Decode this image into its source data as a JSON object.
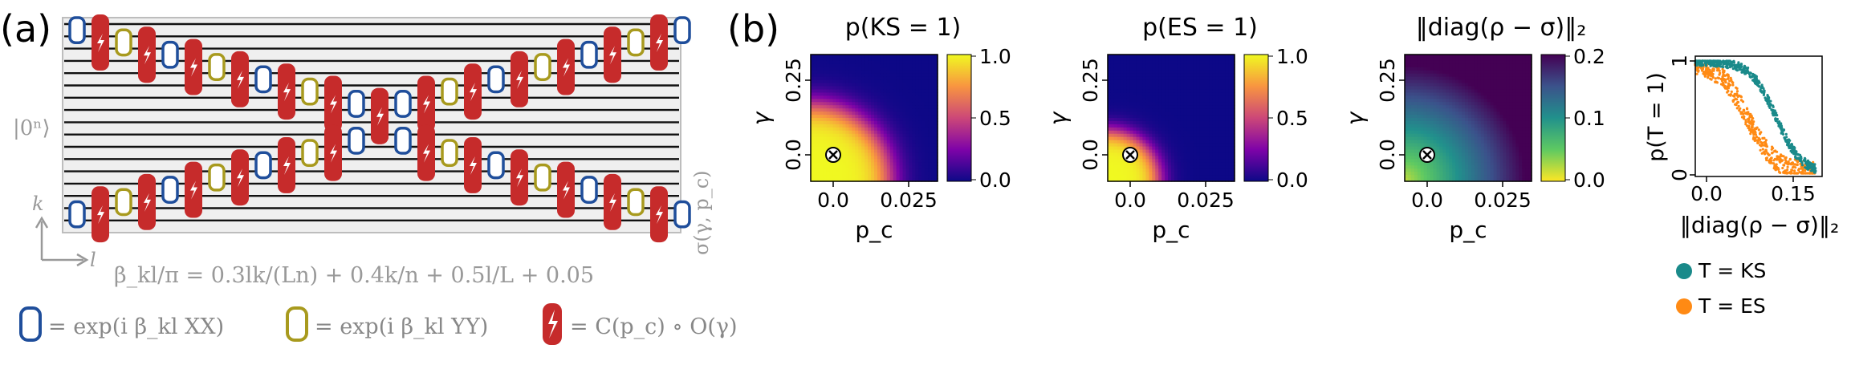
{
  "panel_a": {
    "label": "(a)",
    "input_state": "|0ⁿ⟩",
    "output_state": "σ(γ, p_c)",
    "axis_k": "k",
    "axis_l": "l",
    "beta_formula": "β_kl/π = 0.3lk/(Ln) + 0.4k/n + 0.5l/L + 0.05",
    "legend": {
      "xx": "= exp(i β_kl XX)",
      "yy": "= exp(i β_kl YY)",
      "noise": "= C(p_c) ∘ O(γ)"
    }
  },
  "panel_b": {
    "label": "(b)",
    "colors": {
      "teal": "#1a8a8a",
      "orange": "#ff8a14",
      "blue_gate": "#1f4e9b",
      "olive_gate": "#a89a1e",
      "red_gate": "#c62b2b"
    },
    "heatmaps": [
      {
        "title": "p(KS = 1)",
        "ylabel": "γ",
        "xlabel": "p_c",
        "xticks": [
          "0.0",
          "0.025"
        ],
        "yticks": [
          "0.0",
          "0.25"
        ],
        "colorbar_ticks": [
          "1.0",
          "0.5",
          "0.0"
        ],
        "colormap": "plasma"
      },
      {
        "title": "p(ES = 1)",
        "ylabel": "γ",
        "xlabel": "p_c",
        "xticks": [
          "0.0",
          "0.025"
        ],
        "yticks": [
          "0.0",
          "0.25"
        ],
        "colorbar_ticks": [
          "1.0",
          "0.5",
          "0.0"
        ],
        "colormap": "plasma"
      },
      {
        "title": "‖diag(ρ − σ)‖₂",
        "ylabel": "γ",
        "xlabel": "p_c",
        "xticks": [
          "0.0",
          "0.025"
        ],
        "yticks": [
          "0.0",
          "0.25"
        ],
        "colorbar_ticks": [
          "0.2",
          "0.1",
          "0.0"
        ],
        "colormap": "viridis_r"
      }
    ],
    "scatter": {
      "ylabel": "p(T = 1)",
      "xlabel": "‖diag(ρ − σ)‖₂",
      "xticks": [
        "0.0",
        "0.15"
      ],
      "yticks": [
        "1",
        "0"
      ],
      "legend": [
        "T = KS",
        "T = ES"
      ]
    }
  },
  "chart_data": [
    {
      "type": "heatmap",
      "title": "p(KS = 1)",
      "xlabel": "p_c",
      "ylabel": "γ",
      "xlim": [
        -0.006,
        0.035
      ],
      "ylim": [
        -0.08,
        0.36
      ],
      "colorbar_range": [
        0.0,
        1.0
      ],
      "colorbar_ticks": [
        0.0,
        0.5,
        1.0
      ],
      "marker": {
        "x": 0.0,
        "y": 0.0
      }
    },
    {
      "type": "heatmap",
      "title": "p(ES = 1)",
      "xlabel": "p_c",
      "ylabel": "γ",
      "xlim": [
        -0.006,
        0.035
      ],
      "ylim": [
        -0.08,
        0.36
      ],
      "colorbar_range": [
        0.0,
        1.0
      ],
      "colorbar_ticks": [
        0.0,
        0.5,
        1.0
      ],
      "marker": {
        "x": 0.0,
        "y": 0.0
      }
    },
    {
      "type": "heatmap",
      "title": "‖diag(ρ − σ)‖₂",
      "xlabel": "p_c",
      "ylabel": "γ",
      "xlim": [
        -0.006,
        0.035
      ],
      "ylim": [
        -0.08,
        0.36
      ],
      "colorbar_range": [
        0.0,
        0.2
      ],
      "colorbar_ticks": [
        0.0,
        0.1,
        0.2
      ],
      "marker": {
        "x": 0.0,
        "y": 0.0
      }
    },
    {
      "type": "scatter",
      "xlabel": "‖diag(ρ − σ)‖₂",
      "ylabel": "p(T = 1)",
      "xlim": [
        -0.02,
        0.2
      ],
      "ylim": [
        0,
        1
      ],
      "series": [
        {
          "name": "T = KS",
          "color": "#1a8a8a",
          "midpoint": 0.12,
          "width": 0.022,
          "spread": 0.02
        },
        {
          "name": "T = ES",
          "color": "#ff8a14",
          "midpoint": 0.07,
          "width": 0.025,
          "spread": 0.045
        }
      ]
    }
  ]
}
